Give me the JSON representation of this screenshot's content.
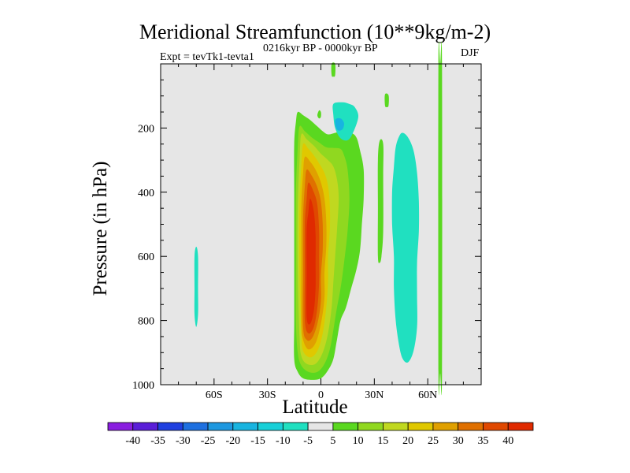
{
  "chart_data": {
    "type": "heatmap",
    "title": "Meridional Streamfunction (10**9kg/m-2)",
    "subtitle_left": "Expt = tevTk1-tevta1",
    "subtitle_center": "0216kyr BP - 0000kyr BP",
    "subtitle_right": "DJF",
    "xlabel": "Latitude",
    "ylabel": "Pressure (in hPa)",
    "xlim": [
      -90,
      90
    ],
    "ylim": [
      0,
      1000
    ],
    "x_ticks": [
      {
        "value": -60,
        "label": "60S"
      },
      {
        "value": -30,
        "label": "30S"
      },
      {
        "value": 0,
        "label": "0"
      },
      {
        "value": 30,
        "label": "30N"
      },
      {
        "value": 60,
        "label": "60N"
      }
    ],
    "y_ticks": [
      {
        "value": 200,
        "label": "200"
      },
      {
        "value": 400,
        "label": "400"
      },
      {
        "value": 600,
        "label": "600"
      },
      {
        "value": 800,
        "label": "800"
      },
      {
        "value": 1000,
        "label": "1000"
      }
    ],
    "colorbar": {
      "levels": [
        -40,
        -35,
        -30,
        -25,
        -20,
        -15,
        -10,
        -5,
        5,
        10,
        15,
        20,
        25,
        30,
        35,
        40
      ],
      "colors": [
        "#8a1ee0",
        "#5a1ed8",
        "#2040e0",
        "#1e70e0",
        "#1e98e0",
        "#18b4e0",
        "#18d0d8",
        "#20e0c0",
        "#e6e6e6",
        "#5ad820",
        "#90d820",
        "#c0d820",
        "#e0c800",
        "#e0a000",
        "#e07000",
        "#e04800",
        "#e02a00"
      ]
    },
    "contours": [
      {
        "name": "tropical-cell-green",
        "level": 5,
        "color": "#5ad820",
        "points": [
          [
            -13,
            150
          ],
          [
            -10,
            160
          ],
          [
            -6,
            175
          ],
          [
            -2,
            195
          ],
          [
            1,
            210
          ],
          [
            4,
            220
          ],
          [
            8,
            215
          ],
          [
            12,
            210
          ],
          [
            17,
            215
          ],
          [
            20,
            230
          ],
          [
            22,
            270
          ],
          [
            24,
            330
          ],
          [
            24,
            420
          ],
          [
            23,
            500
          ],
          [
            22,
            580
          ],
          [
            20,
            640
          ],
          [
            17,
            700
          ],
          [
            14,
            760
          ],
          [
            11,
            800
          ],
          [
            9,
            860
          ],
          [
            7,
            920
          ],
          [
            4,
            955
          ],
          [
            0,
            980
          ],
          [
            -5,
            985
          ],
          [
            -10,
            980
          ],
          [
            -13,
            960
          ],
          [
            -15,
            920
          ],
          [
            -15,
            800
          ],
          [
            -15,
            600
          ],
          [
            -15,
            400
          ],
          [
            -15,
            250
          ],
          [
            -14,
            180
          ]
        ]
      },
      {
        "name": "tropical-cell-lime",
        "level": 10,
        "color": "#90d820",
        "points": [
          [
            -12,
            195
          ],
          [
            -9,
            210
          ],
          [
            -5,
            230
          ],
          [
            -1,
            245
          ],
          [
            3,
            260
          ],
          [
            7,
            262
          ],
          [
            11,
            265
          ],
          [
            13,
            285
          ],
          [
            15,
            330
          ],
          [
            16,
            420
          ],
          [
            15,
            520
          ],
          [
            13,
            620
          ],
          [
            11,
            700
          ],
          [
            9,
            760
          ],
          [
            7,
            830
          ],
          [
            5,
            890
          ],
          [
            2,
            935
          ],
          [
            -2,
            960
          ],
          [
            -7,
            960
          ],
          [
            -11,
            940
          ],
          [
            -13,
            900
          ],
          [
            -14,
            800
          ],
          [
            -14,
            600
          ],
          [
            -14,
            400
          ],
          [
            -13,
            260
          ]
        ]
      },
      {
        "name": "tropical-cell-yellowgreen",
        "level": 15,
        "color": "#c0d820",
        "points": [
          [
            -11,
            220
          ],
          [
            -8,
            235
          ],
          [
            -4,
            255
          ],
          [
            0,
            280
          ],
          [
            4,
            300
          ],
          [
            7,
            320
          ],
          [
            9,
            360
          ],
          [
            10,
            420
          ],
          [
            9,
            520
          ],
          [
            8,
            600
          ],
          [
            7,
            680
          ],
          [
            6,
            760
          ],
          [
            4,
            840
          ],
          [
            1,
            900
          ],
          [
            -3,
            935
          ],
          [
            -8,
            935
          ],
          [
            -11,
            910
          ],
          [
            -12,
            850
          ],
          [
            -13,
            650
          ],
          [
            -13,
            450
          ],
          [
            -12,
            300
          ]
        ]
      },
      {
        "name": "tropical-cell-gold",
        "level": 20,
        "color": "#e0c800",
        "points": [
          [
            -10,
            250
          ],
          [
            -7,
            265
          ],
          [
            -4,
            285
          ],
          [
            -1,
            310
          ],
          [
            2,
            340
          ],
          [
            4,
            380
          ],
          [
            5,
            440
          ],
          [
            5,
            520
          ],
          [
            4,
            600
          ],
          [
            4,
            680
          ],
          [
            3,
            760
          ],
          [
            1,
            840
          ],
          [
            -2,
            895
          ],
          [
            -6,
            915
          ],
          [
            -10,
            895
          ],
          [
            -11,
            840
          ],
          [
            -12,
            650
          ],
          [
            -12,
            450
          ],
          [
            -11,
            320
          ]
        ]
      },
      {
        "name": "tropical-cell-amber",
        "level": 25,
        "color": "#e0a000",
        "points": [
          [
            -9,
            290
          ],
          [
            -6,
            305
          ],
          [
            -3,
            330
          ],
          [
            0,
            370
          ],
          [
            2,
            420
          ],
          [
            3,
            490
          ],
          [
            3,
            570
          ],
          [
            2,
            650
          ],
          [
            2,
            730
          ],
          [
            0,
            810
          ],
          [
            -3,
            870
          ],
          [
            -7,
            890
          ],
          [
            -10,
            860
          ],
          [
            -11,
            800
          ],
          [
            -11,
            600
          ],
          [
            -11,
            450
          ],
          [
            -10,
            340
          ]
        ]
      },
      {
        "name": "tropical-cell-orange",
        "level": 30,
        "color": "#e07000",
        "points": [
          [
            -8,
            330
          ],
          [
            -5,
            350
          ],
          [
            -2,
            385
          ],
          [
            0,
            430
          ],
          [
            1,
            500
          ],
          [
            1,
            580
          ],
          [
            0,
            660
          ],
          [
            0,
            740
          ],
          [
            -2,
            810
          ],
          [
            -5,
            855
          ],
          [
            -8,
            860
          ],
          [
            -10,
            820
          ],
          [
            -10,
            650
          ],
          [
            -10,
            480
          ],
          [
            -9,
            380
          ]
        ]
      },
      {
        "name": "tropical-cell-redorange",
        "level": 35,
        "color": "#e04800",
        "points": [
          [
            -7,
            370
          ],
          [
            -4,
            400
          ],
          [
            -2,
            440
          ],
          [
            -1,
            520
          ],
          [
            -1,
            600
          ],
          [
            -1,
            680
          ],
          [
            -2,
            760
          ],
          [
            -4,
            820
          ],
          [
            -7,
            840
          ],
          [
            -9,
            800
          ],
          [
            -9,
            650
          ],
          [
            -9,
            500
          ],
          [
            -8,
            420
          ]
        ]
      },
      {
        "name": "tropical-cell-red",
        "level": 40,
        "color": "#e02a00",
        "points": [
          [
            -6,
            420
          ],
          [
            -4,
            460
          ],
          [
            -3,
            530
          ],
          [
            -3,
            620
          ],
          [
            -3,
            700
          ],
          [
            -4,
            770
          ],
          [
            -6,
            810
          ],
          [
            -8,
            790
          ],
          [
            -8,
            650
          ],
          [
            -8,
            520
          ],
          [
            -7,
            460
          ]
        ]
      },
      {
        "name": "nh-column-cyan",
        "level": -5,
        "color": "#20e0c0",
        "points": [
          [
            46,
            215
          ],
          [
            49,
            230
          ],
          [
            52,
            270
          ],
          [
            54,
            340
          ],
          [
            55,
            430
          ],
          [
            55,
            520
          ],
          [
            54,
            620
          ],
          [
            54,
            720
          ],
          [
            54,
            820
          ],
          [
            52,
            895
          ],
          [
            49,
            930
          ],
          [
            46,
            920
          ],
          [
            44,
            880
          ],
          [
            42,
            800
          ],
          [
            41,
            700
          ],
          [
            41,
            600
          ],
          [
            40,
            500
          ],
          [
            40,
            400
          ],
          [
            41,
            320
          ],
          [
            42,
            260
          ],
          [
            44,
            225
          ]
        ]
      },
      {
        "name": "nh-left-green-strip",
        "level": 5,
        "color": "#5ad820",
        "points": [
          [
            33,
            240
          ],
          [
            35,
            250
          ],
          [
            35,
            350
          ],
          [
            35,
            520
          ],
          [
            34,
            600
          ],
          [
            33,
            620
          ],
          [
            32,
            600
          ],
          [
            32,
            450
          ],
          [
            32,
            300
          ]
        ]
      },
      {
        "name": "upper-cyan-blob",
        "level": -5,
        "color": "#20e0c0",
        "points": [
          [
            7,
            125
          ],
          [
            12,
            120
          ],
          [
            16,
            125
          ],
          [
            19,
            135
          ],
          [
            21,
            165
          ],
          [
            18,
            215
          ],
          [
            15,
            238
          ],
          [
            11,
            232
          ],
          [
            8,
            200
          ],
          [
            7,
            160
          ]
        ]
      },
      {
        "name": "upper-blue-blob",
        "level": -10,
        "color": "#18b4e0",
        "points": [
          [
            8,
            175
          ],
          [
            11,
            170
          ],
          [
            13,
            185
          ],
          [
            12,
            205
          ],
          [
            9,
            205
          ]
        ]
      },
      {
        "name": "tiny-green-dot",
        "level": 5,
        "color": "#5ad820",
        "points": [
          [
            -1,
            145
          ],
          [
            0,
            150
          ],
          [
            0,
            165
          ],
          [
            -1,
            170
          ],
          [
            -2,
            160
          ]
        ]
      },
      {
        "name": "equator-top-green-strip",
        "level": 5,
        "color": "#5ad820",
        "points": [
          [
            6,
            0
          ],
          [
            8,
            0
          ],
          [
            8,
            35
          ],
          [
            7,
            40
          ],
          [
            6,
            35
          ]
        ]
      },
      {
        "name": "right-top-green-strip",
        "level": 5,
        "color": "#5ad820",
        "points": [
          [
            36,
            95
          ],
          [
            38,
            98
          ],
          [
            38,
            130
          ],
          [
            37,
            135
          ],
          [
            36,
            130
          ]
        ]
      },
      {
        "name": "sh-cyan-strip",
        "level": -5,
        "color": "#20e0c0",
        "points": [
          [
            -70,
            570
          ],
          [
            -69,
            600
          ],
          [
            -69,
            700
          ],
          [
            -69,
            780
          ],
          [
            -70,
            820
          ],
          [
            -71,
            780
          ],
          [
            -71,
            700
          ],
          [
            -71,
            600
          ]
        ]
      },
      {
        "name": "nh-green-vertical-line",
        "level": 5,
        "color": "#5ad820",
        "points": [
          [
            67,
            0
          ],
          [
            68,
            0
          ],
          [
            68,
            960
          ],
          [
            67,
            965
          ],
          [
            66,
            960
          ],
          [
            66,
            0
          ]
        ]
      }
    ]
  }
}
